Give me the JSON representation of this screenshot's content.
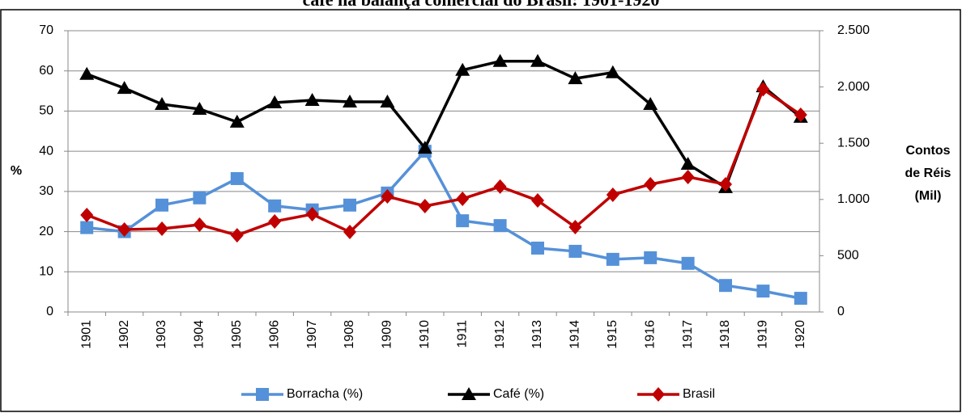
{
  "chart_data": {
    "type": "line",
    "title": "café na balança comercial do Brasil: 1901-1920",
    "y_label": "%",
    "y2_label": [
      "Contos",
      "de Réis",
      "(Mil)"
    ],
    "categories": [
      "1901",
      "1902",
      "1903",
      "1904",
      "1905",
      "1906",
      "1907",
      "1908",
      "1909",
      "1910",
      "1911",
      "1912",
      "1913",
      "1914",
      "1915",
      "1916",
      "1917",
      "1918",
      "1919",
      "1920"
    ],
    "ylim": [
      0,
      70
    ],
    "yticks": [
      0,
      10,
      20,
      30,
      40,
      50,
      60,
      70
    ],
    "y2lim": [
      0,
      2500
    ],
    "y2ticks": [
      0,
      500,
      {
        "value": 1000,
        "label": "1.000"
      },
      {
        "value": 1500,
        "label": "1.500"
      },
      {
        "value": 2000,
        "label": "2.000"
      },
      {
        "value": 2500,
        "label": "2.500"
      }
    ],
    "grid": true,
    "legend": "bottom",
    "series": [
      {
        "name": "Borracha (%)",
        "color": "#5591d8",
        "marker": "square",
        "values": [
          21,
          20,
          26.6,
          28.4,
          33.2,
          26.4,
          25.4,
          26.6,
          29.6,
          40,
          22.7,
          21.5,
          15.9,
          15.1,
          13.1,
          13.5,
          12.1,
          6.6,
          5.2,
          3.4
        ]
      },
      {
        "name": "Café (%)",
        "color": "#000000",
        "marker": "triangle",
        "values": [
          59.2,
          55.7,
          51.7,
          50.5,
          47.3,
          52.1,
          52.7,
          52.3,
          52.3,
          40.8,
          60.2,
          62.4,
          62.4,
          58.1,
          59.6,
          51.7,
          36.8,
          31,
          56.1,
          48.5
        ]
      },
      {
        "name": "Brasil",
        "color": "#c00000",
        "marker": "diamond",
        "axis": "y2",
        "values": [
          862,
          733,
          740,
          776,
          682,
          805,
          869,
          711,
          1027,
          941,
          1006,
          1114,
          991,
          754,
          1042,
          1135,
          1200,
          1135,
          1980,
          1753
        ]
      }
    ]
  }
}
